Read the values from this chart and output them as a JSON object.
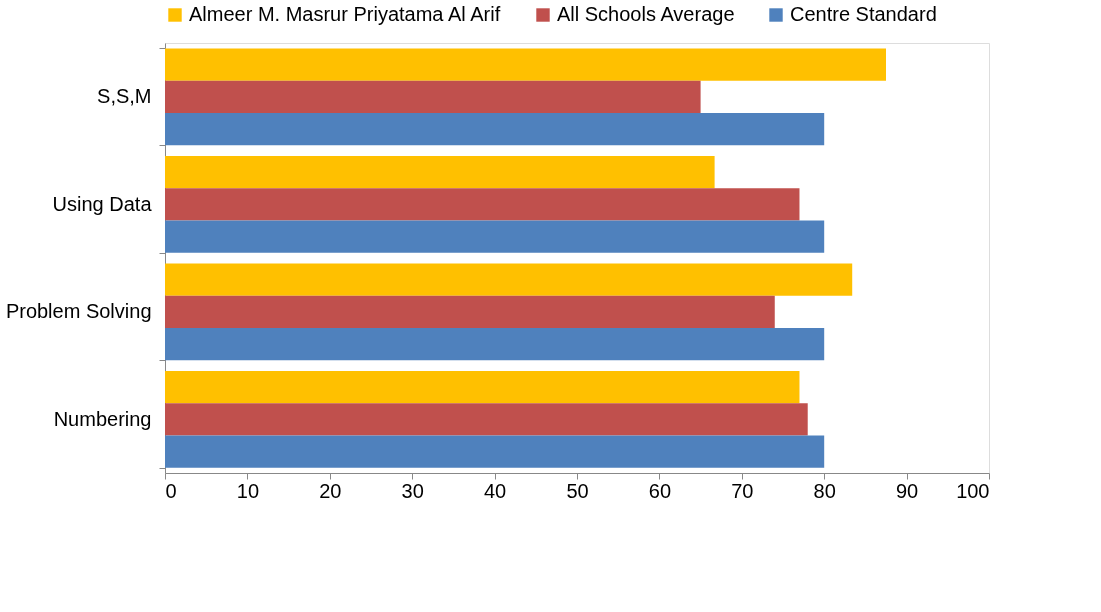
{
  "chart_data": {
    "type": "bar",
    "orientation": "horizontal",
    "categories": [
      "S,S,M",
      "Using Data",
      "Problem Solving",
      "Numbering"
    ],
    "series": [
      {
        "name": "Almeer M. Masrur Priyatama Al Arif",
        "color": "#ffc000",
        "values": [
          87.5,
          66.7,
          83.4,
          77
        ]
      },
      {
        "name": "All Schools Average",
        "color": "#c0504d",
        "values": [
          65,
          77,
          74,
          78
        ]
      },
      {
        "name": "Centre Standard",
        "color": "#4f81bd",
        "values": [
          80,
          80,
          80,
          80
        ]
      }
    ],
    "xlim": [
      0,
      100
    ],
    "xticks": [
      0,
      10,
      20,
      30,
      40,
      50,
      60,
      70,
      80,
      90,
      100
    ],
    "grid": false,
    "legend": "top"
  }
}
